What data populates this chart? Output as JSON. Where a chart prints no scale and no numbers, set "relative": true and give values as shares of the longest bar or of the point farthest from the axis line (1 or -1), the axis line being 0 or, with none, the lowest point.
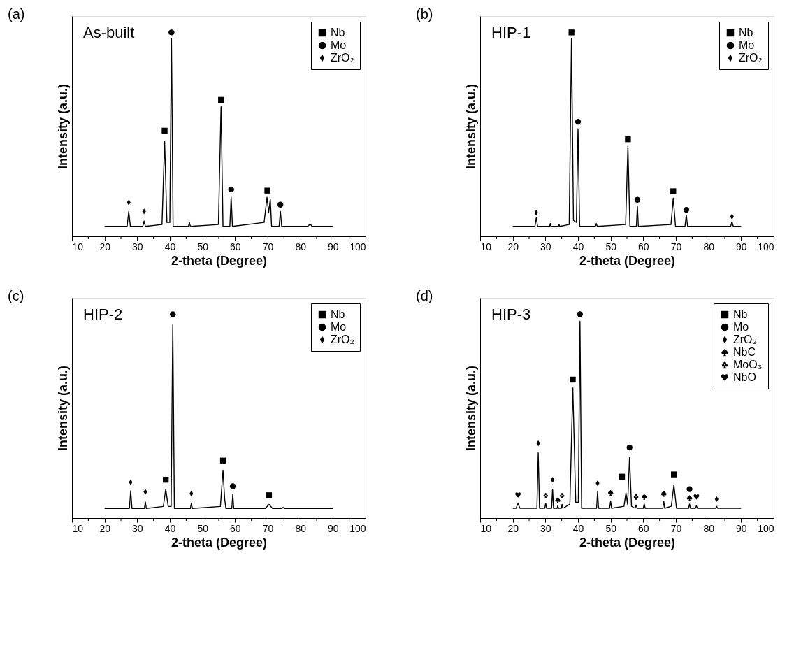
{
  "chart_data": [
    {
      "type": "line",
      "title": "As-built",
      "annotations": [
        "(a)"
      ],
      "xlabel": "2-theta (Degree)",
      "ylabel": "Intensity (a.u.)",
      "relative": true,
      "tick_labels": "x",
      "grid": false,
      "legend": "top right",
      "xlim": [
        10,
        100
      ],
      "xticks": [
        10,
        {
          "value": 15,
          "label": null
        },
        20,
        {
          "value": 25,
          "label": null
        },
        30,
        {
          "value": 35,
          "label": null
        },
        40,
        {
          "value": 45,
          "label": null
        },
        50,
        {
          "value": 55,
          "label": null
        },
        60,
        {
          "value": 65,
          "label": null
        },
        70,
        {
          "value": 75,
          "label": null
        },
        80,
        {
          "value": 85,
          "label": null
        },
        90,
        {
          "value": 95,
          "label": null
        },
        100
      ],
      "series": [
        {
          "color": "#000000",
          "x": [
            20,
            26.9,
            27.4,
            27.9,
            31.7,
            32.1,
            32.5,
            37.6,
            38.4,
            39.1,
            40.0,
            40.5,
            41.0,
            45.7,
            46.0,
            46.3,
            54.9,
            55.7,
            56.3,
            58.4,
            58.8,
            59.2,
            68.9,
            69.8,
            70.3,
            70.8,
            71.2,
            73.5,
            73.9,
            74.3,
            82.3,
            83,
            83.6,
            90
          ],
          "values": [
            0.049,
            0.049,
            0.122,
            0.049,
            0.049,
            0.075,
            0.049,
            0.058,
            0.466,
            0.068,
            0.068,
            0.971,
            0.049,
            0.049,
            0.068,
            0.049,
            0.058,
            0.635,
            0.049,
            0.049,
            0.191,
            0.049,
            0.068,
            0.191,
            0.117,
            0.181,
            0.049,
            0.049,
            0.122,
            0.049,
            0.049,
            0.061,
            0.049,
            0.049
          ]
        },
        {
          "type": "scatter",
          "name": "Nb",
          "marker": "square",
          "color": "#000000",
          "x": [
            38.4,
            55.7,
            69.9
          ],
          "values": [
            0.518,
            0.669,
            0.224
          ]
        },
        {
          "type": "scatter",
          "name": "Mo",
          "marker": "circle",
          "color": "#000000",
          "x": [
            40.5,
            58.8,
            73.9
          ],
          "values": [
            1,
            0.23,
            0.155
          ]
        },
        {
          "type": "scatter",
          "name": "ZrO₂",
          "marker": "diamond",
          "color": "#000000",
          "x": [
            27.4,
            32.1
          ],
          "values": [
            0.166,
            0.122
          ]
        }
      ]
    },
    {
      "type": "line",
      "title": "HIP-1",
      "annotations": [
        "(b)"
      ],
      "xlabel": "2-theta (Degree)",
      "ylabel": "Intensity (a.u.)",
      "relative": true,
      "tick_labels": "x",
      "grid": false,
      "legend": "top right",
      "xlim": [
        10,
        100
      ],
      "xticks": [
        10,
        {
          "value": 15,
          "label": null
        },
        20,
        {
          "value": 25,
          "label": null
        },
        30,
        {
          "value": 35,
          "label": null
        },
        40,
        {
          "value": 45,
          "label": null
        },
        50,
        {
          "value": 55,
          "label": null
        },
        60,
        {
          "value": 65,
          "label": null
        },
        70,
        {
          "value": 75,
          "label": null
        },
        80,
        {
          "value": 85,
          "label": null
        },
        90,
        {
          "value": 95,
          "label": null
        },
        100
      ],
      "series": [
        {
          "color": "#000000",
          "x": [
            20,
            26.8,
            27.2,
            27.6,
            31.3,
            31.5,
            31.7,
            34.0,
            34.2,
            34.4,
            37.3,
            38.0,
            38.6,
            39.5,
            40.0,
            40.5,
            45.3,
            45.6,
            45.9,
            54.6,
            55.3,
            55.9,
            57.9,
            58.2,
            58.5,
            68.5,
            69.2,
            69.9,
            72.8,
            73.2,
            73.6,
            86.8,
            87.2,
            87.6,
            90
          ],
          "values": [
            0.049,
            0.049,
            0.092,
            0.049,
            0.049,
            0.063,
            0.049,
            0.049,
            0.058,
            0.049,
            0.058,
            0.971,
            0.078,
            0.068,
            0.527,
            0.049,
            0.049,
            0.063,
            0.049,
            0.058,
            0.441,
            0.049,
            0.049,
            0.15,
            0.049,
            0.058,
            0.187,
            0.049,
            0.049,
            0.104,
            0.049,
            0.049,
            0.072,
            0.049,
            0.049
          ]
        },
        {
          "type": "scatter",
          "name": "Nb",
          "marker": "square",
          "color": "#000000",
          "x": [
            38.0,
            55.3,
            69.2
          ],
          "values": [
            1,
            0.476,
            0.221
          ]
        },
        {
          "type": "scatter",
          "name": "Mo",
          "marker": "circle",
          "color": "#000000",
          "x": [
            40.0,
            58.2,
            73.2
          ],
          "values": [
            0.562,
            0.179,
            0.13
          ]
        },
        {
          "type": "scatter",
          "name": "ZrO₂",
          "marker": "diamond",
          "color": "#000000",
          "x": [
            27.2,
            87.2
          ],
          "values": [
            0.116,
            0.097
          ]
        }
      ]
    },
    {
      "type": "line",
      "title": "HIP-2",
      "annotations": [
        "(c)"
      ],
      "xlabel": "2-theta (Degree)",
      "ylabel": "Intensity (a.u.)",
      "relative": true,
      "tick_labels": "x",
      "grid": false,
      "legend": "top right",
      "xlim": [
        10,
        100
      ],
      "xticks": [
        10,
        {
          "value": 15,
          "label": null
        },
        20,
        {
          "value": 25,
          "label": null
        },
        30,
        {
          "value": 35,
          "label": null
        },
        40,
        {
          "value": 45,
          "label": null
        },
        50,
        {
          "value": 55,
          "label": null
        },
        60,
        {
          "value": 65,
          "label": null
        },
        70,
        {
          "value": 75,
          "label": null
        },
        80,
        {
          "value": 85,
          "label": null
        },
        90,
        {
          "value": 95,
          "label": null
        },
        100
      ],
      "series": [
        {
          "color": "#000000",
          "x": [
            20,
            27.6,
            28.0,
            28.4,
            32.2,
            32.5,
            32.8,
            38.0,
            38.75,
            39.5,
            40.4,
            40.9,
            41.4,
            46.3,
            46.6,
            46.9,
            55.5,
            56.3,
            56.8,
            57.2,
            59.0,
            59.3,
            59.6,
            69.3,
            70.4,
            71.5,
            74.3,
            74.7,
            75.1,
            90
          ],
          "values": [
            0.047,
            0.047,
            0.134,
            0.047,
            0.047,
            0.079,
            0.047,
            0.057,
            0.142,
            0.057,
            0.057,
            0.947,
            0.047,
            0.047,
            0.073,
            0.047,
            0.057,
            0.235,
            0.095,
            0.047,
            0.047,
            0.117,
            0.047,
            0.047,
            0.067,
            0.047,
            0.047,
            0.052,
            0.047,
            0.047
          ]
        },
        {
          "type": "scatter",
          "name": "Nb",
          "marker": "square",
          "color": "#000000",
          "x": [
            38.75,
            56.3,
            70.4
          ],
          "values": [
            0.188,
            0.282,
            0.112
          ]
        },
        {
          "type": "scatter",
          "name": "Mo",
          "marker": "circle",
          "color": "#000000",
          "x": [
            40.9,
            59.3
          ],
          "values": [
            1,
            0.156
          ]
        },
        {
          "type": "scatter",
          "name": "ZrO₂",
          "marker": "diamond",
          "color": "#000000",
          "x": [
            28.0,
            32.5,
            46.6
          ],
          "values": [
            0.176,
            0.129,
            0.12
          ]
        }
      ]
    },
    {
      "type": "line",
      "title": "HIP-3",
      "annotations": [
        "(d)"
      ],
      "xlabel": "2-theta (Degree)",
      "ylabel": "Intensity (a.u.)",
      "relative": true,
      "tick_labels": "x",
      "grid": false,
      "legend": "top right",
      "xlim": [
        10,
        100
      ],
      "xticks": [
        10,
        {
          "value": 15,
          "label": null
        },
        20,
        {
          "value": 25,
          "label": null
        },
        30,
        {
          "value": 35,
          "label": null
        },
        40,
        {
          "value": 45,
          "label": null
        },
        50,
        {
          "value": 55,
          "label": null
        },
        60,
        {
          "value": 65,
          "label": null
        },
        70,
        {
          "value": 75,
          "label": null
        },
        80,
        {
          "value": 85,
          "label": null
        },
        90,
        {
          "value": 95,
          "label": null
        },
        100
      ],
      "series": [
        {
          "color": "#000000",
          "x": [
            20,
            21.0,
            21.6,
            22.2,
            27.4,
            27.8,
            28.2,
            29.8,
            30.1,
            30.4,
            31.9,
            32.2,
            32.5,
            33.6,
            33.8,
            34.0,
            34.9,
            35.1,
            35.4,
            37.5,
            38.4,
            39.3,
            40.1,
            40.6,
            41.1,
            45.7,
            46.0,
            46.3,
            49.7,
            50.0,
            50.3,
            54.1,
            54.7,
            55.2,
            55.8,
            56.4,
            57.5,
            57.8,
            58.1,
            60.0,
            60.3,
            60.6,
            66.0,
            66.3,
            66.6,
            68.6,
            69.4,
            70.2,
            73.9,
            74.2,
            74.5,
            76.0,
            76.3,
            76.6,
            82.2,
            82.5,
            82.8,
            90
          ],
          "values": [
            0.048,
            0.048,
            0.072,
            0.048,
            0.048,
            0.32,
            0.048,
            0.048,
            0.072,
            0.048,
            0.048,
            0.142,
            0.048,
            0.048,
            0.061,
            0.048,
            0.048,
            0.067,
            0.048,
            0.068,
            0.639,
            0.077,
            0.077,
            0.965,
            0.048,
            0.048,
            0.13,
            0.048,
            0.048,
            0.084,
            0.048,
            0.058,
            0.124,
            0.068,
            0.297,
            0.058,
            0.048,
            0.064,
            0.048,
            0.048,
            0.069,
            0.048,
            0.048,
            0.081,
            0.048,
            0.058,
            0.162,
            0.048,
            0.048,
            0.069,
            0.048,
            0.048,
            0.061,
            0.048,
            0.048,
            0.058,
            0.048,
            0.048
          ]
        },
        {
          "type": "scatter",
          "name": "Nb",
          "marker": "square",
          "color": "#000000",
          "x": [
            38.4,
            53.5,
            69.4
          ],
          "values": [
            0.679,
            0.203,
            0.214
          ]
        },
        {
          "type": "scatter",
          "name": "Mo",
          "marker": "circle",
          "color": "#000000",
          "x": [
            40.6,
            55.8,
            74.2
          ],
          "values": [
            1,
            0.346,
            0.142
          ]
        },
        {
          "type": "scatter",
          "name": "ZrO₂",
          "marker": "diamond",
          "color": "#000000",
          "x": [
            27.8,
            32.2,
            46.0,
            82.5
          ],
          "values": [
            0.367,
            0.188,
            0.171,
            0.093
          ]
        },
        {
          "type": "scatter",
          "name": "NbC",
          "color": "#000000",
          "x": [
            33.8,
            50.0,
            60.3,
            66.3,
            74.2
          ],
          "values": [
            0.087,
            0.124,
            0.104,
            0.119,
            0.098
          ]
        },
        {
          "type": "scatter",
          "name": "MoO₃",
          "color": "#000000",
          "x": [
            30.1,
            35.1,
            57.8
          ],
          "values": [
            0.11,
            0.11,
            0.104
          ]
        },
        {
          "type": "scatter",
          "name": "NbO",
          "color": "#000000",
          "x": [
            21.6,
            76.3
          ],
          "values": [
            0.113,
            0.104
          ]
        }
      ]
    }
  ]
}
